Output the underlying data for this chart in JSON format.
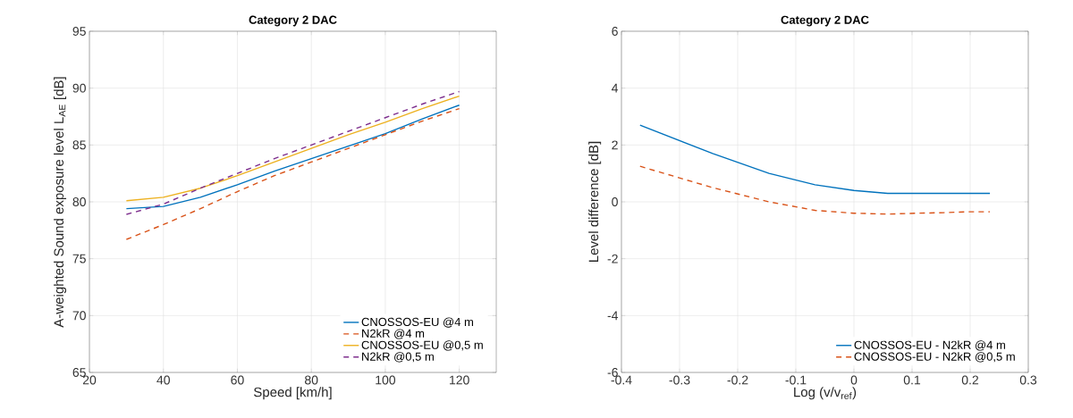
{
  "chart_data": [
    {
      "type": "line",
      "title": "Category 2 DAC",
      "xlabel": "Speed [km/h]",
      "ylabel": "A-weighted Sound exposure level L$_{AE}$ [dB]",
      "x": [
        30,
        40,
        50,
        60,
        70,
        80,
        90,
        100,
        110,
        120
      ],
      "xlim": [
        20,
        130
      ],
      "xticks": [
        20,
        40,
        60,
        80,
        100,
        120
      ],
      "ylim": [
        65,
        95
      ],
      "yticks": [
        65,
        70,
        75,
        80,
        85,
        90,
        95
      ],
      "grid": true,
      "legend": "bottom right",
      "series": [
        {
          "name": "CNOSSOS-EU @4 m",
          "color": "#0072bd",
          "line_style": "solid",
          "values": [
            79.4,
            79.6,
            80.4,
            81.5,
            82.7,
            83.8,
            84.9,
            86.0,
            87.3,
            88.5
          ]
        },
        {
          "name": "N2kR @4 m",
          "color": "#d95319",
          "line_style": "dashed",
          "values": [
            76.7,
            78.0,
            79.4,
            80.9,
            82.3,
            83.5,
            84.7,
            85.9,
            87.1,
            88.2
          ]
        },
        {
          "name": "CNOSSOS-EU @0,5 m",
          "color": "#edb120",
          "line_style": "solid",
          "values": [
            80.1,
            80.4,
            81.2,
            82.3,
            83.5,
            84.7,
            85.9,
            87.0,
            88.2,
            89.3
          ]
        },
        {
          "name": "N2kR @0,5 m",
          "color": "#7e2f8e",
          "line_style": "dashed",
          "values": [
            78.9,
            79.8,
            81.2,
            82.5,
            83.8,
            85.0,
            86.2,
            87.4,
            88.6,
            89.7
          ]
        }
      ]
    },
    {
      "type": "line",
      "title": "Category 2 DAC",
      "xlabel": "Log (v/v$_{ref}$)",
      "ylabel": "Level difference [dB]",
      "x": [
        -0.368,
        -0.243,
        -0.146,
        -0.067,
        0,
        0.058,
        0.109,
        0.155,
        0.196,
        0.234
      ],
      "xlim": [
        -0.4,
        0.3
      ],
      "xticks": [
        -0.4,
        -0.3,
        -0.2,
        -0.1,
        0,
        0.1,
        0.2,
        0.3
      ],
      "ylim": [
        -6,
        6
      ],
      "yticks": [
        -6,
        -4,
        -2,
        0,
        2,
        4,
        6
      ],
      "grid": true,
      "legend": "bottom right",
      "series": [
        {
          "name": "CNOSSOS-EU - N2kR @4 m",
          "color": "#0072bd",
          "line_style": "solid",
          "values": [
            2.7,
            1.7,
            1.0,
            0.6,
            0.4,
            0.3,
            0.3,
            0.3,
            0.3,
            0.3
          ]
        },
        {
          "name": "CNOSSOS-EU - N2kR @0,5 m",
          "color": "#d95319",
          "line_style": "dashed",
          "values": [
            1.25,
            0.5,
            0.0,
            -0.3,
            -0.4,
            -0.43,
            -0.4,
            -0.38,
            -0.35,
            -0.35
          ]
        }
      ]
    }
  ]
}
